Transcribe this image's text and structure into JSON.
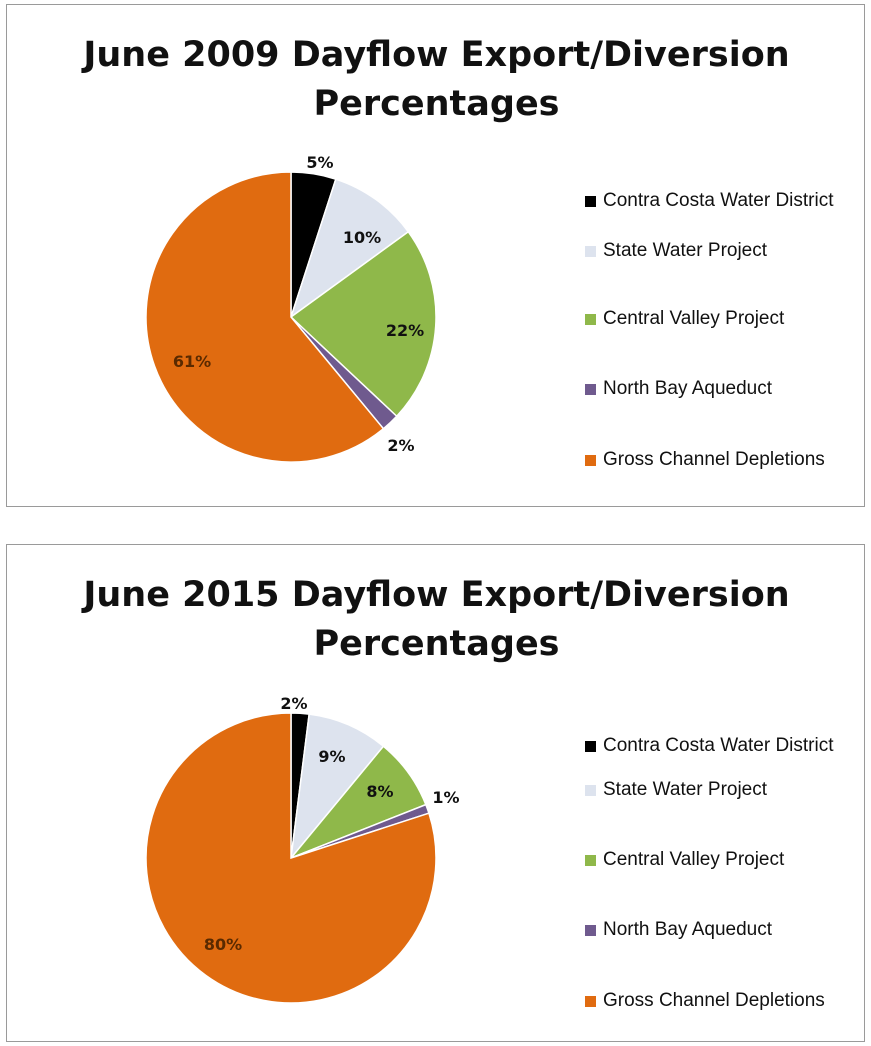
{
  "colors": {
    "contra_costa": "#000000",
    "state_water": "#dde3ee",
    "central_valley": "#8fb84a",
    "north_bay": "#6f5a8e",
    "gross_channel": "#e06b10",
    "slice_stroke": "#ffffff",
    "panel_border": "#9a9a9a"
  },
  "chart_data": [
    {
      "type": "pie",
      "title": "June 2009 Dayflow Export/Diversion Percentages",
      "title_lines": [
        "June 2009 Dayflow Export/Diversion",
        "Percentages"
      ],
      "legend_position": "right",
      "slices": [
        {
          "label": "Contra Costa Water District",
          "value": 5,
          "display": "5%",
          "color": "#000000",
          "label_color": "#111111"
        },
        {
          "label": "State Water Project",
          "value": 10,
          "display": "10%",
          "color": "#dde3ee",
          "label_color": "#111111"
        },
        {
          "label": "Central Valley Project",
          "value": 22,
          "display": "22%",
          "color": "#8fb84a",
          "label_color": "#111111"
        },
        {
          "label": "North Bay Aqueduct",
          "value": 2,
          "display": "2%",
          "color": "#6f5a8e",
          "label_color": "#111111"
        },
        {
          "label": "Gross Channel Depletions",
          "value": 61,
          "display": "61%",
          "color": "#e06b10",
          "label_color": "#5a2a00"
        }
      ]
    },
    {
      "type": "pie",
      "title": "June 2015 Dayflow Export/Diversion Percentages",
      "title_lines": [
        "June 2015 Dayflow Export/Diversion",
        "Percentages"
      ],
      "legend_position": "right",
      "slices": [
        {
          "label": "Contra Costa Water District",
          "value": 2,
          "display": "2%",
          "color": "#000000",
          "label_color": "#111111"
        },
        {
          "label": "State Water Project",
          "value": 9,
          "display": "9%",
          "color": "#dde3ee",
          "label_color": "#111111"
        },
        {
          "label": "Central Valley Project",
          "value": 8,
          "display": "8%",
          "color": "#8fb84a",
          "label_color": "#111111"
        },
        {
          "label": "North Bay Aqueduct",
          "value": 1,
          "display": "1%",
          "color": "#6f5a8e",
          "label_color": "#111111"
        },
        {
          "label": "Gross Channel Depletions",
          "value": 80,
          "display": "80%",
          "color": "#e06b10",
          "label_color": "#5a2a00"
        }
      ]
    }
  ]
}
